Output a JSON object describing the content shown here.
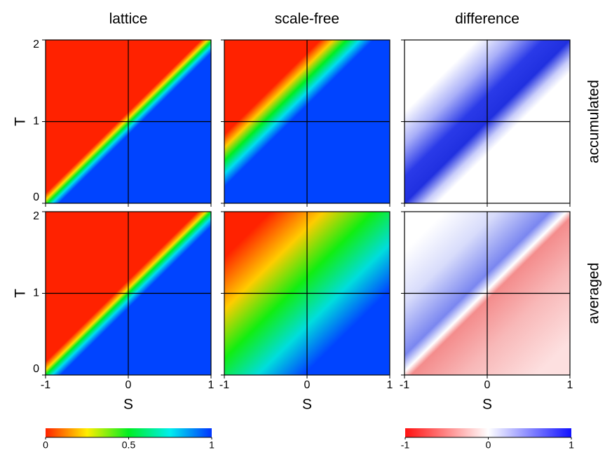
{
  "chart_data": {
    "type": "heatmap",
    "columns": [
      "lattice",
      "scale-free",
      "difference"
    ],
    "rows": [
      "accumulated",
      "averaged"
    ],
    "xlabel": "S",
    "ylabel": "T",
    "xlim": [
      -1,
      1
    ],
    "ylim": [
      0,
      2
    ],
    "xticks": [
      -1,
      0,
      1
    ],
    "yticks": [
      0,
      1,
      2
    ],
    "colorbars": [
      {
        "lim": [
          0,
          1
        ],
        "ticks": [
          0,
          0.5,
          1
        ],
        "colors": [
          "#ff2200",
          "#ffee00",
          "#00ee22",
          "#00eeee",
          "#0033ff"
        ]
      },
      {
        "lim": [
          -1,
          1
        ],
        "ticks": [
          -1,
          0,
          1
        ],
        "colors": [
          "#ff1111",
          "#ffffff",
          "#1111ff"
        ]
      }
    ]
  }
}
